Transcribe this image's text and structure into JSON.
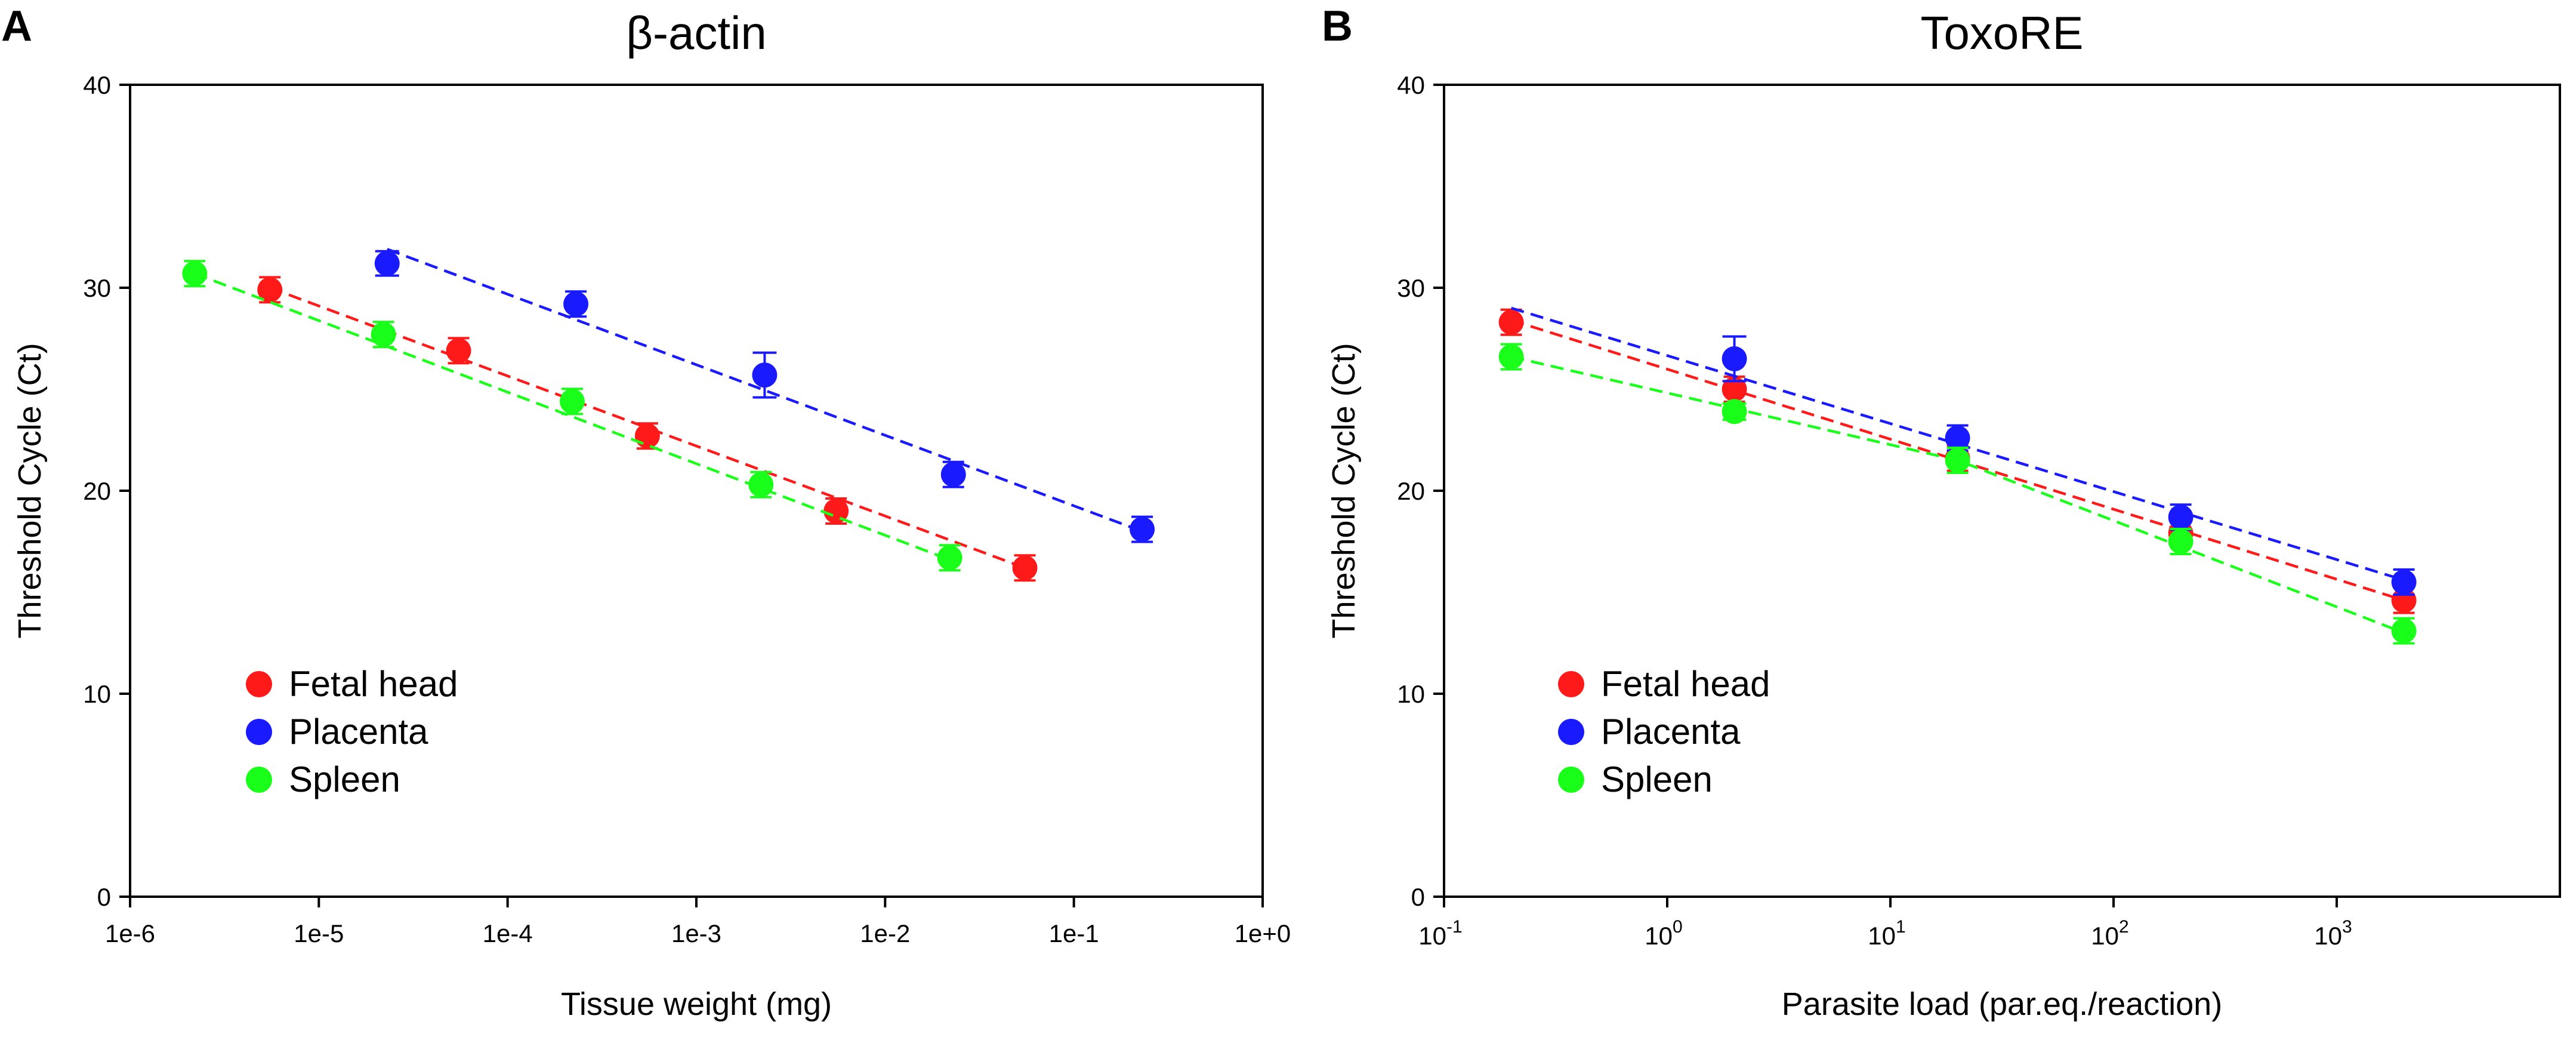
{
  "chart_data": [
    {
      "type": "scatter",
      "panel": "A",
      "title": "β-actin",
      "xlabel": "Tissue weight (mg)",
      "ylabel": "Threshold Cycle (Ct)",
      "xscale": "log",
      "xlim": [
        1e-06,
        1
      ],
      "ylim": [
        0,
        40
      ],
      "xtick_values": [
        1e-06,
        1e-05,
        0.0001,
        0.001,
        0.01,
        0.1,
        1
      ],
      "xtick_labels": [
        "1e-6",
        "1e-5",
        "1e-4",
        "1e-3",
        "1e-2",
        "1e-1",
        "1e+0"
      ],
      "ytick_values": [
        0,
        10,
        20,
        30,
        40
      ],
      "ytick_labels": [
        "0",
        "10",
        "20",
        "30",
        "40"
      ],
      "legend_position": "bottom-left",
      "series": [
        {
          "name": "Fetal head",
          "color": "#ff1a1a",
          "points": [
            {
              "x": 5.5e-06,
              "y": 29.9,
              "err": 0.2
            },
            {
              "x": 5.5e-05,
              "y": 26.9,
              "err": 0.3
            },
            {
              "x": 0.00055,
              "y": 22.7,
              "err": 0.2
            },
            {
              "x": 0.0055,
              "y": 19.0,
              "err": 0.2
            },
            {
              "x": 0.055,
              "y": 16.2,
              "err": 0.2
            }
          ],
          "fit": [
            {
              "x": 5.5e-06,
              "y": 30.0
            },
            {
              "x": 0.055,
              "y": 16.2
            }
          ]
        },
        {
          "name": "Placenta",
          "color": "#1a1aff",
          "points": [
            {
              "x": 2.3e-05,
              "y": 31.2,
              "err": 0.6
            },
            {
              "x": 0.00023,
              "y": 29.2,
              "err": 0.3
            },
            {
              "x": 0.0023,
              "y": 25.7,
              "err": 1.1
            },
            {
              "x": 0.023,
              "y": 20.8,
              "err": 0.3
            },
            {
              "x": 0.23,
              "y": 18.1,
              "err": 0.2
            }
          ],
          "fit": [
            {
              "x": 2.3e-05,
              "y": 31.9
            },
            {
              "x": 0.23,
              "y": 18.0
            }
          ]
        },
        {
          "name": "Spleen",
          "color": "#1aff1a",
          "points": [
            {
              "x": 2.2e-06,
              "y": 30.7,
              "err": 0.1
            },
            {
              "x": 2.2e-05,
              "y": 27.7,
              "err": 0.2
            },
            {
              "x": 0.00022,
              "y": 24.4,
              "err": 0.2
            },
            {
              "x": 0.0022,
              "y": 20.3,
              "err": 0.2
            },
            {
              "x": 0.022,
              "y": 16.7,
              "err": 0.1
            }
          ],
          "fit": [
            {
              "x": 2.2e-06,
              "y": 30.7
            },
            {
              "x": 0.022,
              "y": 16.6
            }
          ]
        }
      ]
    },
    {
      "type": "scatter",
      "panel": "B",
      "title": "ToxoRE",
      "xlabel": "Parasite load (par.eq./reaction)",
      "ylabel": "Threshold Cycle (Ct)",
      "xscale": "log",
      "xlim": [
        0.1,
        10000
      ],
      "ylim": [
        0,
        40
      ],
      "xtick_values": [
        0.1,
        1,
        10,
        100,
        1000
      ],
      "xtick_labels": [
        {
          "base": "10",
          "exp": "-1"
        },
        {
          "base": "10",
          "exp": "0"
        },
        {
          "base": "10",
          "exp": "1"
        },
        {
          "base": "10",
          "exp": "2"
        },
        {
          "base": "10",
          "exp": "3"
        }
      ],
      "ytick_values": [
        0,
        10,
        20,
        30,
        40
      ],
      "ytick_labels": [
        "0",
        "10",
        "20",
        "30",
        "40"
      ],
      "legend_position": "bottom-left",
      "series": [
        {
          "name": "Fetal head",
          "color": "#ff1a1a",
          "points": [
            {
              "x": 0.2,
              "y": 28.3,
              "err": 0.3
            },
            {
              "x": 2,
              "y": 25.0,
              "err": 0.3
            },
            {
              "x": 20,
              "y": 21.6,
              "err": 0.2
            },
            {
              "x": 200,
              "y": 17.9,
              "err": 0.2
            },
            {
              "x": 2000,
              "y": 14.6,
              "err": 0.2
            }
          ],
          "fit": [
            {
              "x": 0.2,
              "y": 28.4
            },
            {
              "x": 2000,
              "y": 14.6
            }
          ]
        },
        {
          "name": "Placenta",
          "color": "#1a1aff",
          "points": [
            {
              "x": 2,
              "y": 26.5,
              "err": 1.1
            },
            {
              "x": 20,
              "y": 22.6,
              "err": 0.2
            },
            {
              "x": 200,
              "y": 18.7,
              "err": 0.2
            },
            {
              "x": 2000,
              "y": 15.5,
              "err": 0.2
            }
          ],
          "fit": [
            {
              "x": 0.2,
              "y": 29.0
            },
            {
              "x": 2000,
              "y": 15.6
            }
          ]
        },
        {
          "name": "Spleen",
          "color": "#1aff1a",
          "points": [
            {
              "x": 0.2,
              "y": 26.6,
              "err": 0.1
            },
            {
              "x": 2,
              "y": 23.9,
              "err": 0.4
            },
            {
              "x": 20,
              "y": 21.5,
              "err": 0.2
            },
            {
              "x": 200,
              "y": 17.5,
              "err": 0.2
            },
            {
              "x": 2000,
              "y": 13.1,
              "err": 0.2
            }
          ],
          "fit": [
            {
              "x": 0.2,
              "y": 26.6
            },
            {
              "x": 20,
              "y": 21.5
            },
            {
              "x": 2000,
              "y": 13.0
            }
          ]
        }
      ]
    }
  ]
}
